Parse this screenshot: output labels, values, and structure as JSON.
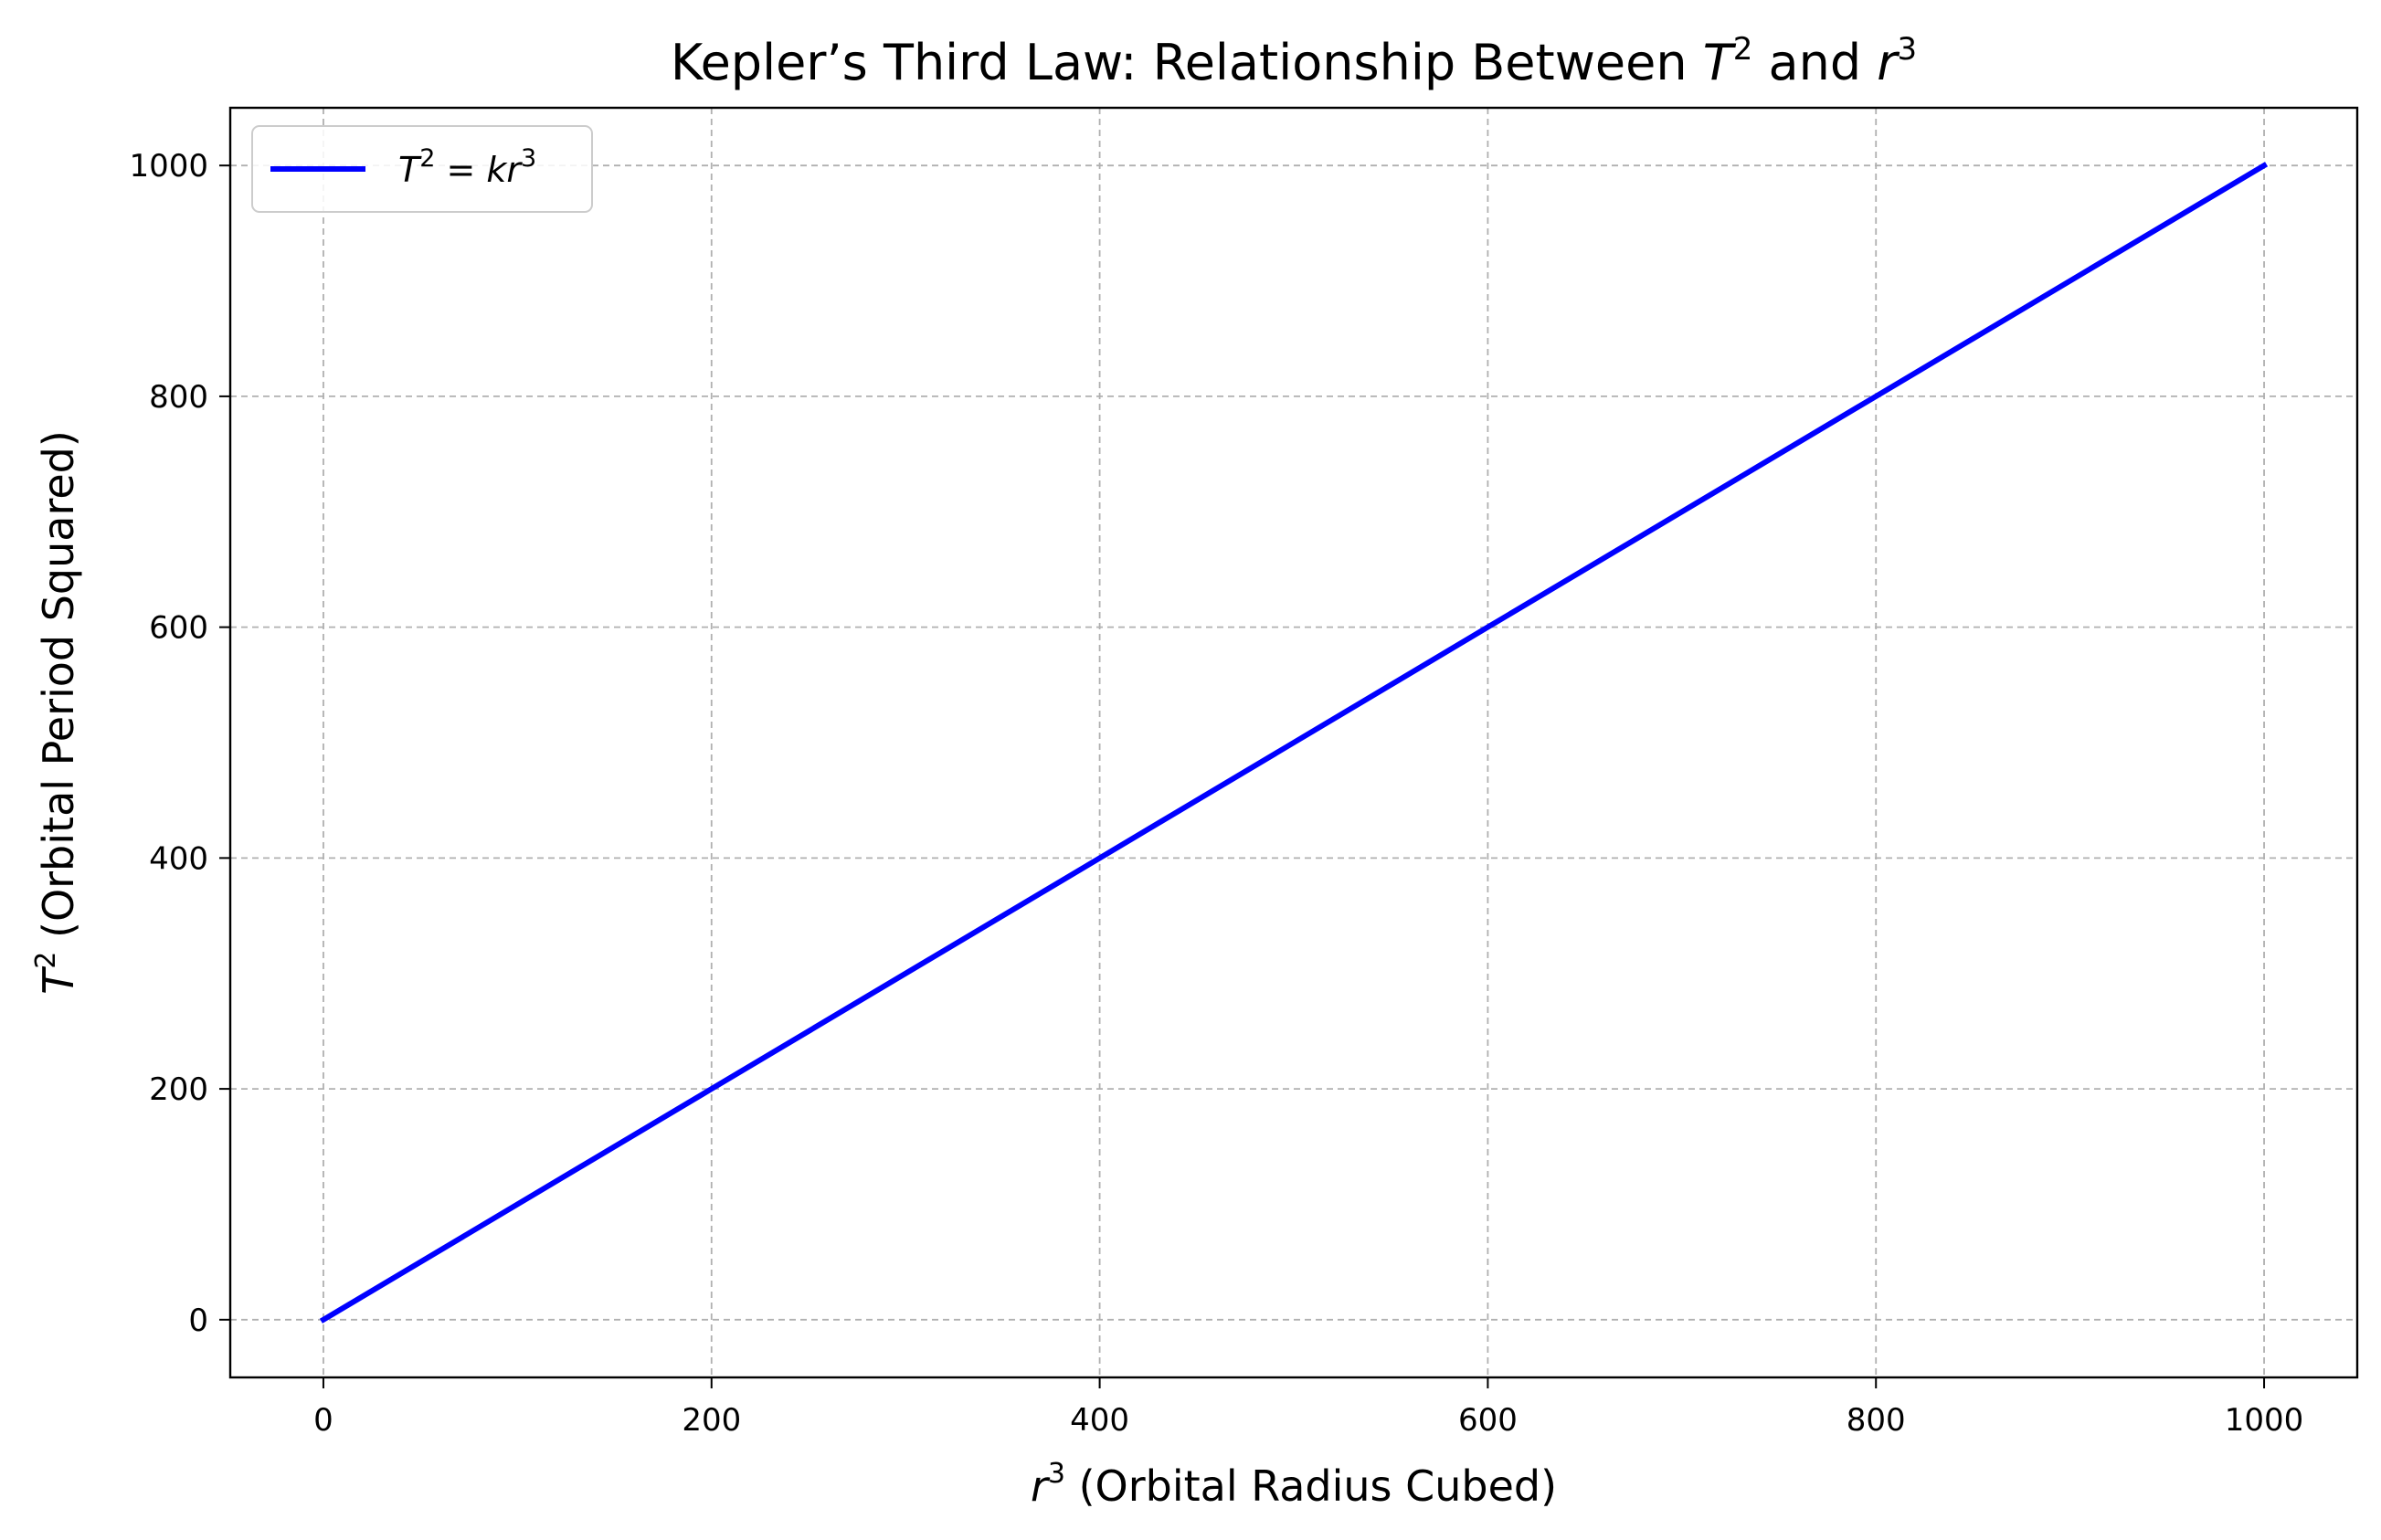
{
  "chart_data": {
    "type": "line",
    "title": {
      "text": "Kepler’s Third Law: Relationship Between ",
      "T": "T",
      "T_sup": "2",
      "middle": " and ",
      "r": "r",
      "r_sup": "3"
    },
    "xlabel": {
      "var": "r",
      "sup": "3",
      "text": " (Orbital Radius Cubed)"
    },
    "ylabel": {
      "var": "T",
      "sup": "2",
      "text": " (Orbital Period Squared)"
    },
    "xlim": [
      -48,
      1048
    ],
    "ylim": [
      -50,
      1050
    ],
    "xticks": [
      0,
      200,
      400,
      600,
      800,
      1000
    ],
    "yticks": [
      0,
      200,
      400,
      600,
      800,
      1000
    ],
    "xtick_labels": [
      "0",
      "200",
      "400",
      "600",
      "800",
      "1000"
    ],
    "ytick_labels": [
      "0",
      "200",
      "400",
      "600",
      "800",
      "1000"
    ],
    "grid": true,
    "legend_position": "top-left",
    "series": [
      {
        "name": "T^2 = kr^3",
        "legend": {
          "T": "T",
          "T_sup": "2",
          "eq": " = ",
          "k": "k",
          "r": "r",
          "r_sup": "3"
        },
        "color": "#0000ff",
        "x": [
          0,
          200,
          400,
          600,
          800,
          1000
        ],
        "y": [
          0,
          200,
          400,
          600,
          800,
          1000
        ]
      }
    ]
  }
}
